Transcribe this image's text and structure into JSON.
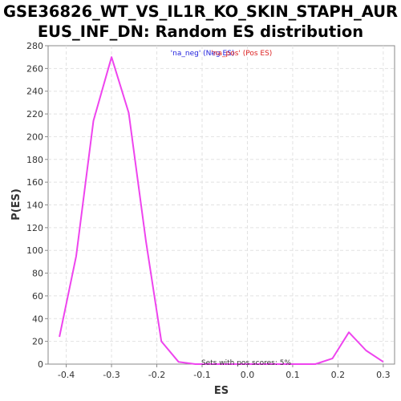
{
  "chart_data": {
    "type": "line",
    "title_line1": "GSE36826_WT_VS_IL1R_KO_SKIN_STAPH_AUR",
    "title_line2": "EUS_INF_DN: Random ES distribution",
    "xlabel": "ES",
    "ylabel": "P(ES)",
    "xlim": [
      -0.44,
      0.325
    ],
    "ylim": [
      0,
      280
    ],
    "xticks": [
      "-0.4",
      "-0.3",
      "-0.2",
      "-0.1",
      "0.0",
      "0.1",
      "0.2",
      "0.3"
    ],
    "xtick_values": [
      -0.4,
      -0.3,
      -0.2,
      -0.1,
      0.0,
      0.1,
      0.2,
      0.3
    ],
    "yticks": [
      "0",
      "20",
      "40",
      "60",
      "80",
      "100",
      "120",
      "140",
      "160",
      "180",
      "200",
      "220",
      "240",
      "260",
      "280"
    ],
    "ytick_values": [
      0,
      20,
      40,
      60,
      80,
      100,
      120,
      140,
      160,
      180,
      200,
      220,
      240,
      260,
      280
    ],
    "grid": true,
    "series": [
      {
        "color": "#ee44ee",
        "points": [
          [
            -0.415,
            24
          ],
          [
            -0.378,
            95
          ],
          [
            -0.34,
            214
          ],
          [
            -0.3,
            270
          ],
          [
            -0.262,
            221
          ],
          [
            -0.224,
            108
          ],
          [
            -0.19,
            20
          ],
          [
            -0.152,
            2
          ],
          [
            -0.115,
            0
          ],
          [
            -0.077,
            0
          ],
          [
            -0.04,
            0
          ],
          [
            0.0,
            0
          ],
          [
            0.038,
            0
          ],
          [
            0.075,
            0
          ],
          [
            0.112,
            0
          ],
          [
            0.15,
            0
          ],
          [
            0.188,
            5
          ],
          [
            0.224,
            28
          ],
          [
            0.262,
            12
          ],
          [
            0.3,
            2
          ]
        ]
      }
    ],
    "legend": {
      "neg_label": "'na_neg' (Neg ES)",
      "neg_color": "#2222dd",
      "pos_label": "'na_pos' (Pos ES)",
      "pos_color": "#dd2222"
    },
    "annotation": "Sets with pos scores: 5%"
  }
}
